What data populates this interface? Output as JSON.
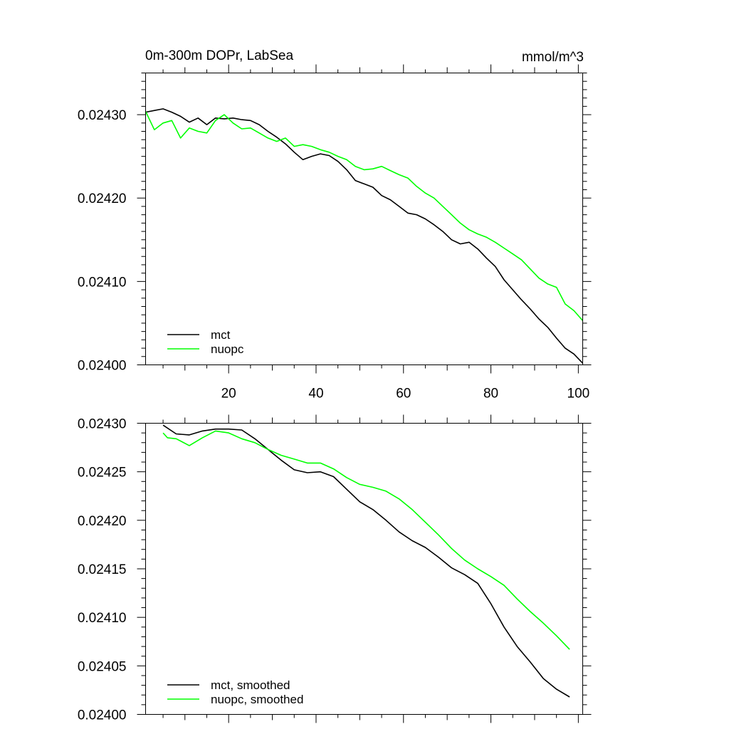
{
  "chart_data": [
    {
      "type": "line",
      "title": "0m-300m DOPr, LabSea",
      "units": "mmol/m^3",
      "xlim": [
        1,
        101
      ],
      "ylim": [
        0.024,
        0.02435
      ],
      "x_ticks": [
        20,
        40,
        60,
        80,
        100
      ],
      "x_tick_labels": [
        "20",
        "40",
        "60",
        "80",
        "100"
      ],
      "y_ticks": [
        0.024,
        0.0241,
        0.0242,
        0.0243
      ],
      "y_tick_labels": [
        "0.02400",
        "0.02410",
        "0.02420",
        "0.02430"
      ],
      "legend_position": "bottom-left",
      "series": [
        {
          "name": "mct",
          "color": "#000000",
          "x": [
            1,
            3,
            5,
            7,
            9,
            11,
            13,
            15,
            17,
            19,
            21,
            23,
            25,
            27,
            29,
            31,
            33,
            35,
            37,
            39,
            41,
            43,
            45,
            47,
            49,
            51,
            53,
            55,
            57,
            59,
            61,
            63,
            65,
            67,
            69,
            71,
            73,
            75,
            77,
            79,
            81,
            83,
            85,
            87,
            89,
            91,
            93,
            95,
            97,
            99,
            101
          ],
          "values": [
            0.024303,
            0.024305,
            0.024307,
            0.024303,
            0.024298,
            0.024291,
            0.024296,
            0.024288,
            0.024296,
            0.024295,
            0.024296,
            0.024294,
            0.024293,
            0.024288,
            0.02428,
            0.024273,
            0.024265,
            0.024255,
            0.024246,
            0.02425,
            0.024253,
            0.024251,
            0.024244,
            0.024234,
            0.024221,
            0.024217,
            0.024213,
            0.024203,
            0.024198,
            0.02419,
            0.024182,
            0.02418,
            0.024175,
            0.024168,
            0.02416,
            0.02415,
            0.024145,
            0.024147,
            0.024139,
            0.024128,
            0.024118,
            0.024102,
            0.02409,
            0.024078,
            0.024067,
            0.024055,
            0.024045,
            0.024032,
            0.02402,
            0.024013,
            0.024002
          ]
        },
        {
          "name": "nuopc",
          "color": "#00ff00",
          "x": [
            1,
            3,
            5,
            7,
            9,
            11,
            13,
            15,
            17,
            19,
            21,
            23,
            25,
            27,
            29,
            31,
            33,
            35,
            37,
            39,
            41,
            43,
            45,
            47,
            49,
            51,
            53,
            55,
            57,
            59,
            61,
            63,
            65,
            67,
            69,
            71,
            73,
            75,
            77,
            79,
            81,
            83,
            85,
            87,
            89,
            91,
            93,
            95,
            97,
            99,
            101
          ],
          "values": [
            0.024304,
            0.024282,
            0.02429,
            0.024293,
            0.024272,
            0.024284,
            0.02428,
            0.024278,
            0.024293,
            0.0243,
            0.02429,
            0.024283,
            0.024284,
            0.024278,
            0.024272,
            0.024268,
            0.024272,
            0.024262,
            0.024264,
            0.024262,
            0.024258,
            0.024255,
            0.02425,
            0.024246,
            0.024238,
            0.024234,
            0.024235,
            0.024238,
            0.024233,
            0.024228,
            0.024224,
            0.024214,
            0.024206,
            0.0242,
            0.02419,
            0.02418,
            0.02417,
            0.024162,
            0.024157,
            0.024153,
            0.024147,
            0.02414,
            0.024133,
            0.024126,
            0.024115,
            0.024104,
            0.024097,
            0.024093,
            0.024073,
            0.024065,
            0.024053
          ]
        }
      ]
    },
    {
      "type": "line",
      "title": "",
      "xlim": [
        1,
        101
      ],
      "ylim": [
        0.024,
        0.0243
      ],
      "x_ticks": [
        20,
        40,
        60,
        80,
        100
      ],
      "y_ticks": [
        0.024,
        0.02405,
        0.0241,
        0.02415,
        0.0242,
        0.02425,
        0.0243
      ],
      "y_tick_labels": [
        "0.02400",
        "0.02405",
        "0.02410",
        "0.02415",
        "0.02420",
        "0.02425",
        "0.02430"
      ],
      "legend_position": "bottom-left",
      "series": [
        {
          "name": "mct, smoothed",
          "color": "#000000",
          "x": [
            5,
            8,
            11,
            14,
            17,
            20,
            23,
            26,
            29,
            32,
            35,
            38,
            41,
            44,
            47,
            50,
            53,
            56,
            59,
            62,
            65,
            68,
            71,
            74,
            77,
            80,
            83,
            86,
            89,
            92,
            95,
            98
          ],
          "values": [
            0.024298,
            0.024289,
            0.024288,
            0.024292,
            0.024294,
            0.024294,
            0.024293,
            0.024284,
            0.024273,
            0.024262,
            0.024252,
            0.024249,
            0.02425,
            0.024245,
            0.024232,
            0.024219,
            0.024211,
            0.0242,
            0.024188,
            0.024179,
            0.024172,
            0.024162,
            0.024151,
            0.024144,
            0.024135,
            0.024114,
            0.02409,
            0.02407,
            0.024054,
            0.024037,
            0.024026,
            0.024018
          ]
        },
        {
          "name": "nuopc, smoothed",
          "color": "#00ff00",
          "x": [
            5,
            6,
            8,
            11,
            14,
            17,
            20,
            23,
            26,
            29,
            32,
            35,
            38,
            41,
            44,
            47,
            50,
            53,
            56,
            59,
            62,
            65,
            68,
            71,
            74,
            77,
            80,
            83,
            86,
            89,
            92,
            95,
            98
          ],
          "values": [
            0.02429,
            0.024285,
            0.024284,
            0.024277,
            0.024285,
            0.024292,
            0.02429,
            0.024284,
            0.02428,
            0.024273,
            0.024267,
            0.024263,
            0.024259,
            0.024259,
            0.024253,
            0.024244,
            0.024237,
            0.024234,
            0.02423,
            0.024222,
            0.024211,
            0.024198,
            0.024185,
            0.024171,
            0.024159,
            0.02415,
            0.024142,
            0.024133,
            0.024119,
            0.024106,
            0.024094,
            0.024081,
            0.024067
          ]
        }
      ]
    }
  ]
}
